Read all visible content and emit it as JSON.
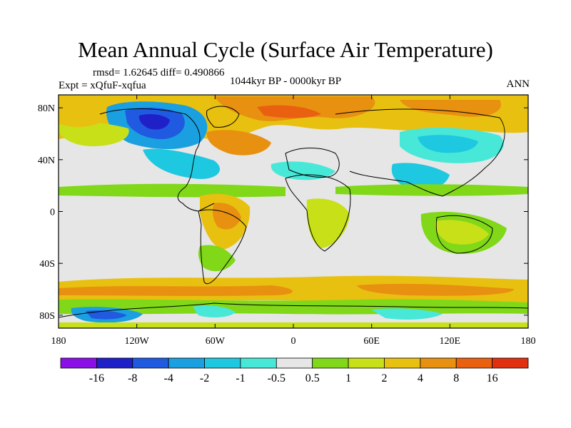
{
  "title": "Mean Annual Cycle (Surface Air Temperature)",
  "stats": "rmsd= 1.62645 diff= 0.490866",
  "experiment": "Expt = xQfuF-xqfua",
  "period": "1044kyr BP - 0000kyr BP",
  "season": "ANN",
  "axes": {
    "lat_labels": [
      "80N",
      "40N",
      "0",
      "40S",
      "80S"
    ],
    "lat_values": [
      80,
      40,
      0,
      -40,
      -80
    ],
    "lon_labels": [
      "180",
      "120W",
      "60W",
      "0",
      "60E",
      "120E",
      "180"
    ],
    "lon_values": [
      -180,
      -120,
      -60,
      0,
      60,
      120,
      180
    ]
  },
  "colorbar": {
    "colors": [
      "#8b10e8",
      "#2020c8",
      "#1f5ae0",
      "#1aa0e0",
      "#1ec8e0",
      "#48e8d8",
      "#e6e6e6",
      "#80d818",
      "#c8e018",
      "#e8c010",
      "#e89010",
      "#e86010",
      "#e03010"
    ],
    "labels": [
      "-16",
      "-8",
      "-4",
      "-2",
      "-1",
      "-0.5",
      "0.5",
      "1",
      "2",
      "4",
      "8",
      "16"
    ]
  },
  "chart_data": {
    "type": "heatmap",
    "title": "Mean Annual Cycle (Surface Air Temperature)",
    "xlim": [
      -180,
      180
    ],
    "ylim": [
      -90,
      90
    ],
    "contour_levels": [
      -16,
      -8,
      -4,
      -2,
      -1,
      -0.5,
      0.5,
      1,
      2,
      4,
      8,
      16
    ],
    "regions": [
      {
        "name": "arctic-ocean-warming",
        "lon": [
          -180,
          180
        ],
        "lat": [
          68,
          84
        ],
        "category": 11
      },
      {
        "name": "canada-greenland-cooling",
        "lon": [
          -115,
          -55
        ],
        "lat": [
          52,
          80
        ],
        "category": 2
      },
      {
        "name": "canada-core-cooling",
        "lon": [
          -105,
          -72
        ],
        "lat": [
          58,
          76
        ],
        "category": 1
      },
      {
        "name": "north-atlantic-warming",
        "lon": [
          -45,
          5
        ],
        "lat": [
          45,
          65
        ],
        "category": 10
      },
      {
        "name": "eurasia-cooling",
        "lon": [
          40,
          140
        ],
        "lat": [
          35,
          58
        ],
        "category": 4
      },
      {
        "name": "north-pacific-warming",
        "lon": [
          -180,
          -130
        ],
        "lat": [
          40,
          60
        ],
        "category": 9
      },
      {
        "name": "south-america-warming",
        "lon": [
          -75,
          -40
        ],
        "lat": [
          -20,
          5
        ],
        "category": 9
      },
      {
        "name": "southern-ocean-warming",
        "lon": [
          -180,
          180
        ],
        "lat": [
          -72,
          -55
        ],
        "category": 10
      },
      {
        "name": "antarctica-cooling",
        "lon": [
          -160,
          -100
        ],
        "lat": [
          -88,
          -76
        ],
        "category": 2
      }
    ]
  }
}
